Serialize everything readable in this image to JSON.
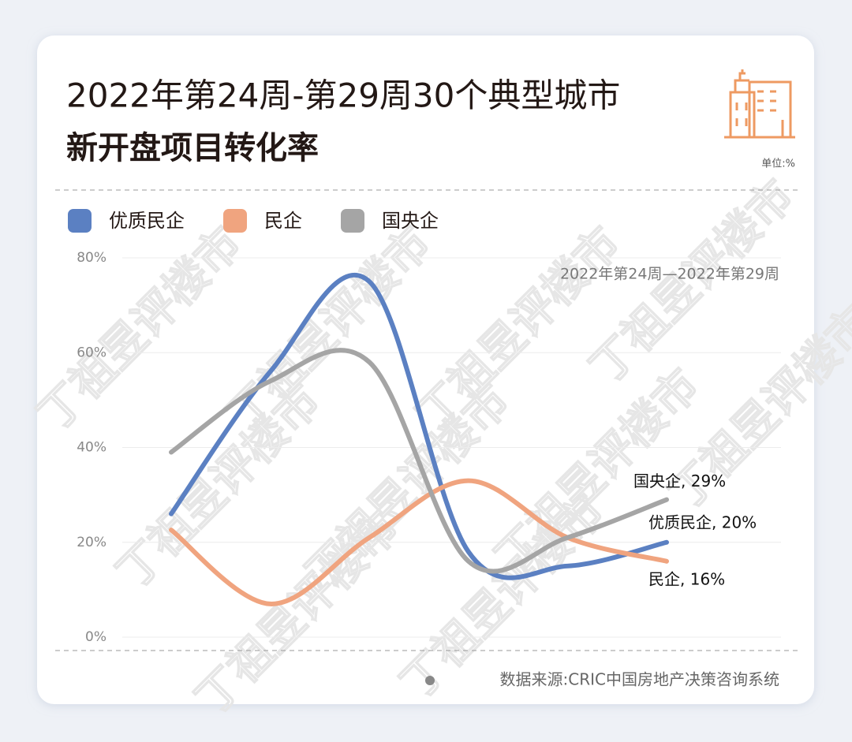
{
  "chart_data": {
    "type": "line",
    "title": "2022年第24周-第29周30个典型城市",
    "subtitle": "新开盘项目转化率",
    "unit": "单位:%",
    "period": "2022年第24周—2022年第29周",
    "source": "数据来源:CRIC中国房地产决策咨询系统",
    "watermark": "丁祖昱评楼市",
    "categories": [
      null,
      null,
      null,
      null,
      null,
      null
    ],
    "series": [
      {
        "name": "优质民企",
        "color": "#5b80c2",
        "values": [
          26,
          56,
          75,
          18,
          15,
          20
        ],
        "value_labels": [
          null,
          null,
          null,
          null,
          null,
          "优质民企, 20%"
        ]
      },
      {
        "name": "民企",
        "color": "#f0a47f",
        "values": [
          22.6,
          7,
          21,
          33,
          21,
          16
        ],
        "value_labels": [
          null,
          null,
          null,
          null,
          null,
          "民企, 16%"
        ]
      },
      {
        "name": "国央企",
        "color": "#a5a5a5",
        "values": [
          39,
          54,
          58,
          16,
          21,
          29
        ],
        "value_labels": [
          null,
          null,
          null,
          null,
          null,
          "国央企, 29%"
        ]
      }
    ],
    "ylim": [
      0,
      80
    ],
    "yticks": [
      {
        "value": 0,
        "label": "0%"
      },
      {
        "value": 20,
        "label": "20%"
      },
      {
        "value": 40,
        "label": "40%"
      },
      {
        "value": 60,
        "label": "60%"
      },
      {
        "value": 80,
        "label": "80%"
      }
    ],
    "grid": true
  }
}
